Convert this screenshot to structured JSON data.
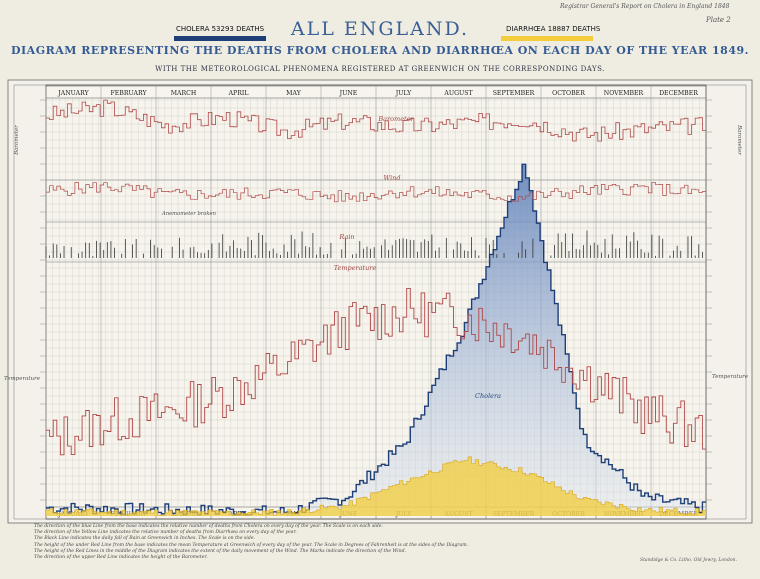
{
  "header": {
    "report_note": "Registrar General's Report on Cholera in England 1848",
    "plate": "Plate 2",
    "title": "ALL ENGLAND.",
    "subtitle": "DIAGRAM REPRESENTING THE DEATHS FROM CHOLERA AND DIARRHŒA ON EACH DAY OF THE YEAR 1849.",
    "subtitle2": "WITH THE METEOROLOGICAL PHENOMENA REGISTERED AT GREENWICH ON THE CORRESPONDING DAYS."
  },
  "legend": {
    "cholera": "CHOLERA 53293 DEATHS",
    "diarrhoea": "DIARRHŒA 18887 DEATHS"
  },
  "colors": {
    "cholera": "#1f3f78",
    "cholera_fill": "#8aa3cc",
    "diarrhoea": "#f2cc3a",
    "meteorology": "#b04848",
    "grid": "#c4c4bc"
  },
  "chart_data": {
    "type": "area",
    "x": [
      "JANUARY",
      "FEBRUARY",
      "MARCH",
      "APRIL",
      "MAY",
      "JUNE",
      "JULY",
      "AUGUST",
      "SEPTEMBER",
      "OCTOBER",
      "NOVEMBER",
      "DECEMBER"
    ],
    "series": [
      {
        "name": "Cholera",
        "values": [
          20,
          18,
          15,
          12,
          10,
          45,
          180,
          470,
          870,
          190,
          45,
          20
        ]
      },
      {
        "name": "Diarrhœa",
        "values": [
          12,
          10,
          9,
          8,
          10,
          25,
          85,
          140,
          110,
          40,
          15,
          10
        ]
      },
      {
        "name": "Barometer",
        "values": [
          60,
          68,
          50,
          58,
          44,
          54,
          48,
          52,
          56,
          40,
          46,
          50
        ]
      },
      {
        "name": "Wind",
        "values": [
          30,
          36,
          25,
          26,
          28,
          22,
          30,
          26,
          22,
          30,
          34,
          28
        ]
      },
      {
        "name": "Rain",
        "values": [
          3,
          2,
          2,
          4,
          5,
          3,
          4,
          3,
          2,
          5,
          4,
          3
        ]
      },
      {
        "name": "Temperature",
        "values": [
          36,
          40,
          42,
          46,
          52,
          60,
          63,
          62,
          58,
          50,
          42,
          38
        ]
      }
    ],
    "panel_labels": {
      "barometer": "Barometer",
      "wind": "Wind",
      "rain": "Rain",
      "temperature": "Temperature",
      "cholera": "Cholera",
      "anemometer": "Anemometer broken"
    },
    "side_labels": {
      "left_top": "Barometer",
      "left_bottom": "Temperature",
      "right_top": "Barometer",
      "right_bottom": "Temperature"
    },
    "grid": true
  },
  "notes": [
    "The direction of the blue Line from the base indicates the relative number of deaths from Cholera on every day of the year. The Scale is on each side.",
    "The direction of the Yellow Line indicates the relative number of deaths from Diarrhœa on every day of the year.",
    "The Black Line indicates the daily fall of Rain at Greenwich in Inches. The Scale is on the side.",
    "The height of the under Red Line from the base indicates the mean Temperature at Greenwich of every day of the year. The Scale in Degrees of Fahrenheit is at the sides of the Diagram.",
    "The height of the Red Lines in the middle of the Diagram indicates the extent of the daily movement of the Wind. The Marks indicate the direction of the Wind.",
    "The direction of the upper Red Line indicates the height of the Barometer."
  ],
  "printer": "Standidge & Co. Litho. Old Jewry, London."
}
